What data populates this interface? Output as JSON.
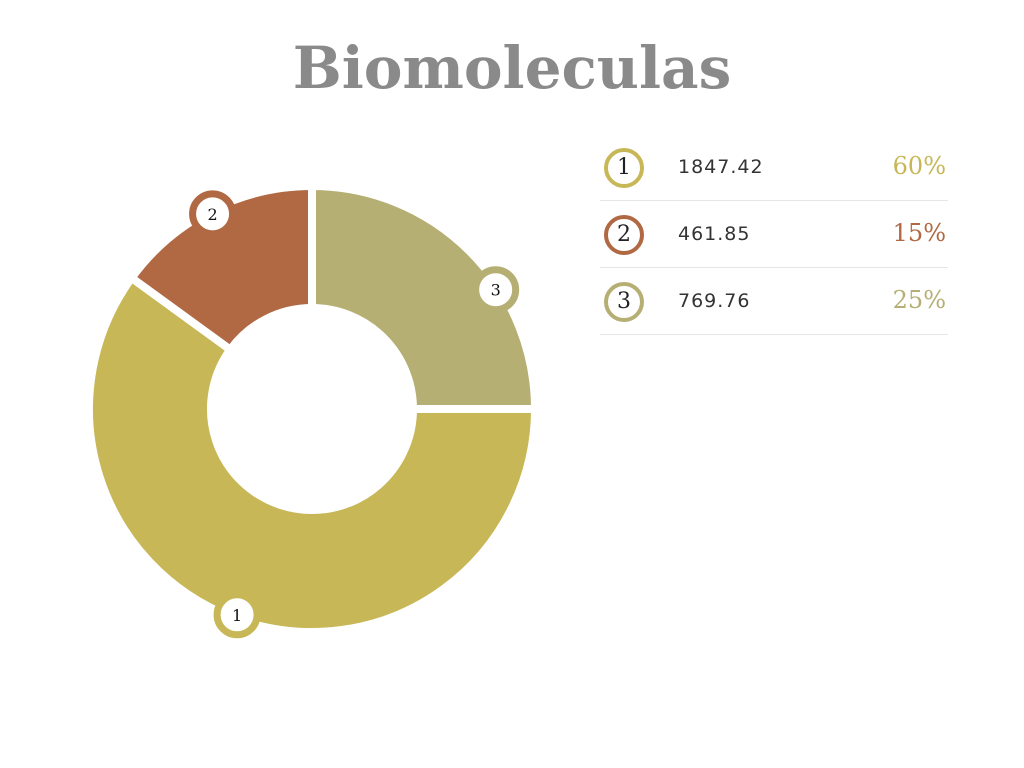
{
  "title": "Biomoleculas",
  "colors": {
    "slice1": "#c7b756",
    "slice2": "#b06943",
    "slice3": "#b5af74",
    "title": "#8a8a8a"
  },
  "chart_data": {
    "type": "pie",
    "title": "Biomoleculas",
    "donut": true,
    "categories": [
      "1",
      "2",
      "3"
    ],
    "values": [
      1847.42,
      461.85,
      769.76
    ],
    "percent_labels": [
      "60%",
      "15%",
      "25%"
    ],
    "legend_position": "right"
  },
  "legend": [
    {
      "label": "1",
      "value": "1847.42",
      "percent": "60%"
    },
    {
      "label": "2",
      "value": "461.85",
      "percent": "15%"
    },
    {
      "label": "3",
      "value": "769.76",
      "percent": "25%"
    }
  ]
}
